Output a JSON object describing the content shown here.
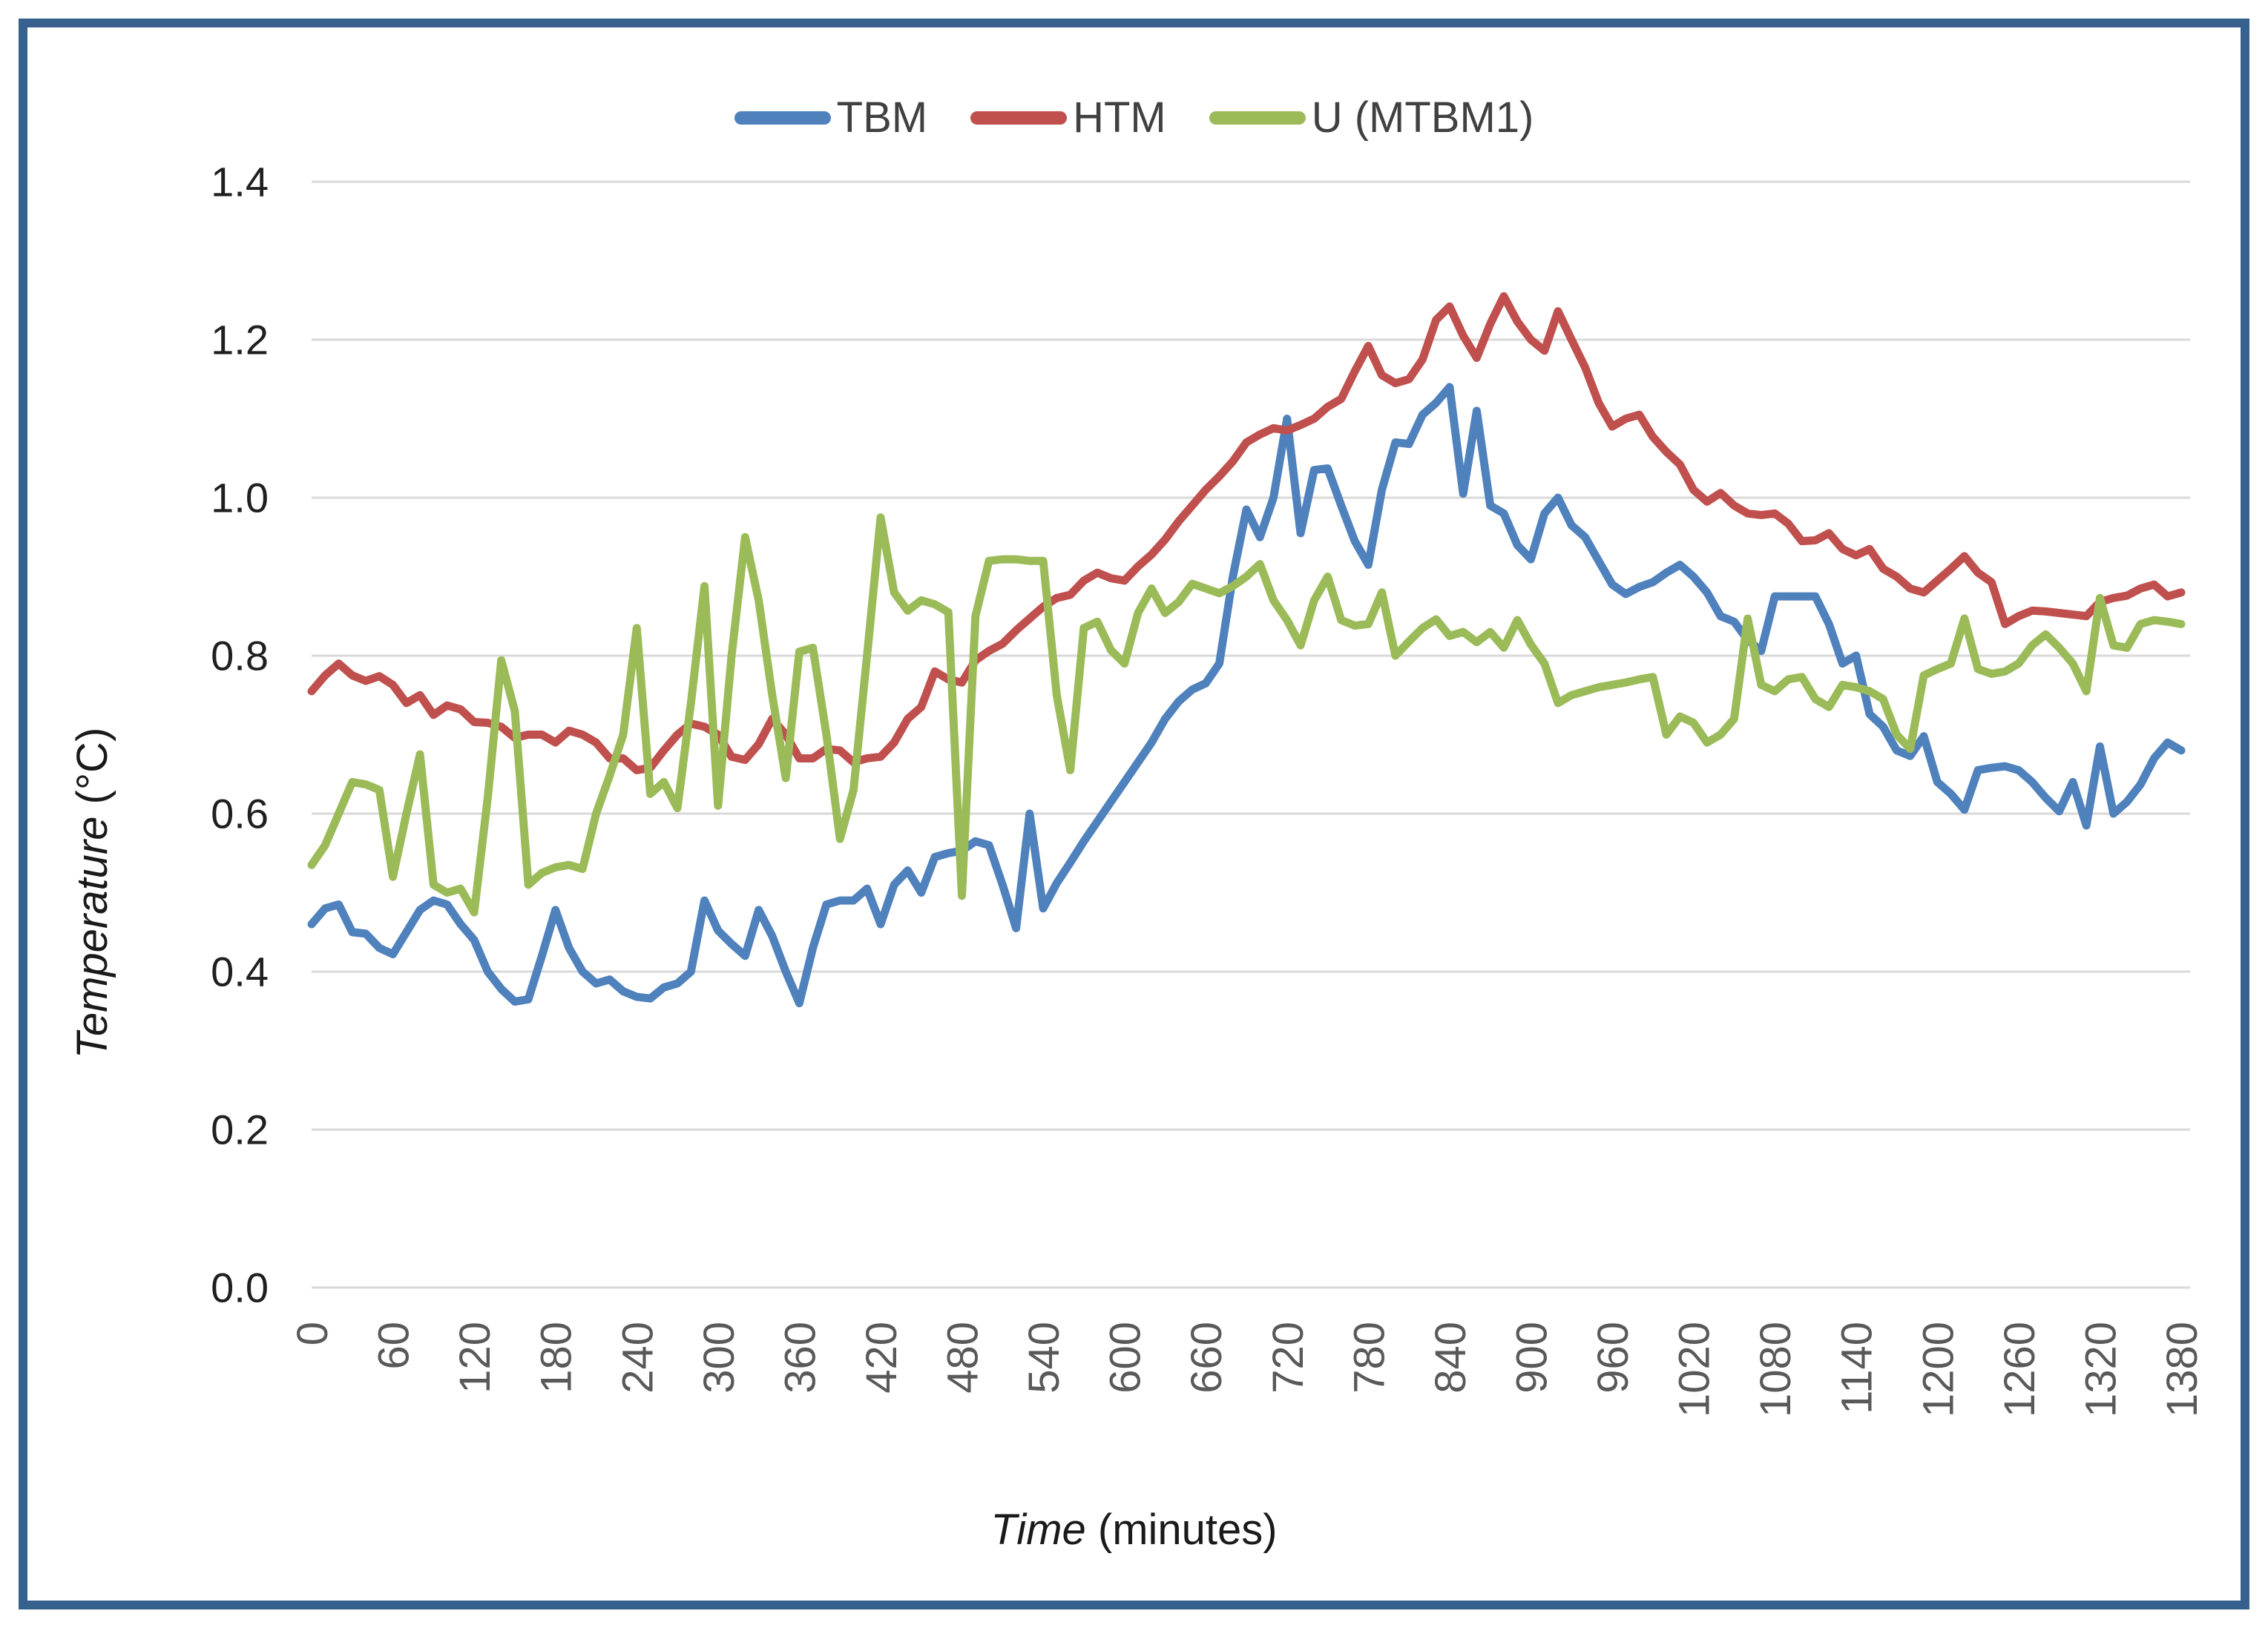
{
  "axis_titles": {
    "x_italic": "Time",
    "x_rest": " (minutes)",
    "y_italic": "Temperature",
    "y_rest": " (°C)"
  },
  "chart_data": {
    "type": "line",
    "title": "",
    "xlabel": "Time (minutes)",
    "ylabel": "Temperature (°C)",
    "legend_position": "top-center",
    "grid": "horizontal",
    "xlim": [
      0,
      1380
    ],
    "ylim": [
      0,
      1.4
    ],
    "x_start": 0,
    "x_step": 10,
    "x_ticks": [
      0,
      60,
      120,
      180,
      240,
      300,
      360,
      420,
      480,
      540,
      600,
      660,
      720,
      780,
      840,
      900,
      960,
      1020,
      1080,
      1140,
      1200,
      1260,
      1320,
      1380
    ],
    "y_ticks": [
      "0.0",
      "0.2",
      "0.4",
      "0.6",
      "0.8",
      "1.0",
      "1.2",
      "1.4"
    ],
    "colors": {
      "grid": "#D9D9D9",
      "x_tick_text": "#595959",
      "y_tick_text": "#1f1f1f",
      "legend_text": "#404040",
      "frame_border": "#36618E"
    },
    "series": [
      {
        "name": "TBM",
        "color": "#4F81BD",
        "values": [
          0.46,
          0.48,
          0.485,
          0.45,
          0.448,
          0.43,
          0.422,
          0.45,
          0.478,
          0.49,
          0.485,
          0.46,
          0.44,
          0.4,
          0.378,
          0.362,
          0.365,
          0.42,
          0.478,
          0.43,
          0.4,
          0.385,
          0.39,
          0.375,
          0.368,
          0.366,
          0.38,
          0.385,
          0.4,
          0.49,
          0.452,
          0.435,
          0.42,
          0.478,
          0.445,
          0.4,
          0.36,
          0.43,
          0.485,
          0.49,
          0.49,
          0.505,
          0.46,
          0.51,
          0.528,
          0.5,
          0.545,
          0.55,
          0.553,
          0.565,
          0.56,
          0.51,
          0.455,
          0.6,
          0.48,
          0.512,
          0.538,
          0.565,
          0.59,
          0.615,
          0.64,
          0.665,
          0.69,
          0.72,
          0.742,
          0.757,
          0.765,
          0.79,
          0.9,
          0.985,
          0.95,
          1.0,
          1.1,
          0.955,
          1.035,
          1.037,
          0.99,
          0.945,
          0.915,
          1.01,
          1.07,
          1.068,
          1.105,
          1.12,
          1.14,
          1.005,
          1.11,
          0.99,
          0.98,
          0.94,
          0.922,
          0.98,
          1.0,
          0.965,
          0.95,
          0.92,
          0.89,
          0.878,
          0.887,
          0.893,
          0.905,
          0.915,
          0.9,
          0.88,
          0.85,
          0.843,
          0.82,
          0.806,
          0.875,
          0.875,
          0.875,
          0.875,
          0.84,
          0.79,
          0.8,
          0.726,
          0.71,
          0.68,
          0.673,
          0.698,
          0.64,
          0.625,
          0.605,
          0.655,
          0.658,
          0.66,
          0.655,
          0.64,
          0.62,
          0.603,
          0.64,
          0.585,
          0.685,
          0.6,
          0.615,
          0.637,
          0.67,
          0.69,
          0.68
        ]
      },
      {
        "name": "HTM",
        "color": "#C0504D",
        "values": [
          0.755,
          0.775,
          0.79,
          0.775,
          0.768,
          0.774,
          0.763,
          0.74,
          0.75,
          0.725,
          0.737,
          0.732,
          0.716,
          0.715,
          0.71,
          0.696,
          0.7,
          0.7,
          0.69,
          0.705,
          0.7,
          0.69,
          0.67,
          0.67,
          0.655,
          0.658,
          0.68,
          0.7,
          0.714,
          0.71,
          0.7,
          0.672,
          0.668,
          0.688,
          0.72,
          0.7,
          0.67,
          0.67,
          0.682,
          0.68,
          0.665,
          0.67,
          0.672,
          0.69,
          0.72,
          0.735,
          0.78,
          0.77,
          0.766,
          0.794,
          0.806,
          0.815,
          0.832,
          0.847,
          0.862,
          0.873,
          0.877,
          0.895,
          0.905,
          0.898,
          0.895,
          0.913,
          0.928,
          0.947,
          0.97,
          0.99,
          1.01,
          1.027,
          1.046,
          1.07,
          1.08,
          1.088,
          1.085,
          1.092,
          1.1,
          1.115,
          1.125,
          1.16,
          1.192,
          1.155,
          1.145,
          1.15,
          1.175,
          1.225,
          1.242,
          1.205,
          1.177,
          1.22,
          1.255,
          1.223,
          1.2,
          1.186,
          1.236,
          1.2,
          1.165,
          1.12,
          1.09,
          1.1,
          1.105,
          1.077,
          1.058,
          1.042,
          1.01,
          0.995,
          1.006,
          0.99,
          0.98,
          0.978,
          0.98,
          0.967,
          0.945,
          0.946,
          0.955,
          0.935,
          0.927,
          0.935,
          0.91,
          0.9,
          0.885,
          0.88,
          0.895,
          0.91,
          0.926,
          0.905,
          0.893,
          0.84,
          0.85,
          0.857,
          0.856,
          0.854,
          0.852,
          0.85,
          0.868,
          0.873,
          0.876,
          0.885,
          0.89,
          0.875,
          0.88
        ]
      },
      {
        "name": "U (MTBM1)",
        "color": "#9BBB59",
        "values": [
          0.535,
          0.56,
          0.6,
          0.64,
          0.637,
          0.63,
          0.52,
          0.6,
          0.675,
          0.51,
          0.5,
          0.505,
          0.475,
          0.62,
          0.794,
          0.73,
          0.51,
          0.525,
          0.532,
          0.535,
          0.53,
          0.6,
          0.648,
          0.7,
          0.835,
          0.625,
          0.64,
          0.607,
          0.74,
          0.888,
          0.61,
          0.8,
          0.95,
          0.87,
          0.75,
          0.645,
          0.805,
          0.81,
          0.7,
          0.568,
          0.63,
          0.8,
          0.975,
          0.88,
          0.857,
          0.87,
          0.865,
          0.855,
          0.496,
          0.85,
          0.92,
          0.922,
          0.922,
          0.92,
          0.92,
          0.75,
          0.655,
          0.835,
          0.843,
          0.807,
          0.79,
          0.854,
          0.885,
          0.854,
          0.868,
          0.891,
          0.885,
          0.879,
          0.888,
          0.9,
          0.916,
          0.87,
          0.845,
          0.813,
          0.87,
          0.9,
          0.845,
          0.838,
          0.84,
          0.88,
          0.8,
          0.818,
          0.835,
          0.846,
          0.825,
          0.83,
          0.817,
          0.83,
          0.81,
          0.845,
          0.814,
          0.79,
          0.74,
          0.75,
          0.755,
          0.76,
          0.763,
          0.766,
          0.77,
          0.773,
          0.7,
          0.723,
          0.715,
          0.69,
          0.7,
          0.72,
          0.847,
          0.763,
          0.755,
          0.77,
          0.773,
          0.745,
          0.735,
          0.763,
          0.76,
          0.755,
          0.745,
          0.7,
          0.682,
          0.775,
          0.783,
          0.79,
          0.847,
          0.783,
          0.777,
          0.78,
          0.79,
          0.813,
          0.827,
          0.81,
          0.79,
          0.755,
          0.873,
          0.813,
          0.81,
          0.84,
          0.845,
          0.843,
          0.84
        ]
      }
    ]
  }
}
